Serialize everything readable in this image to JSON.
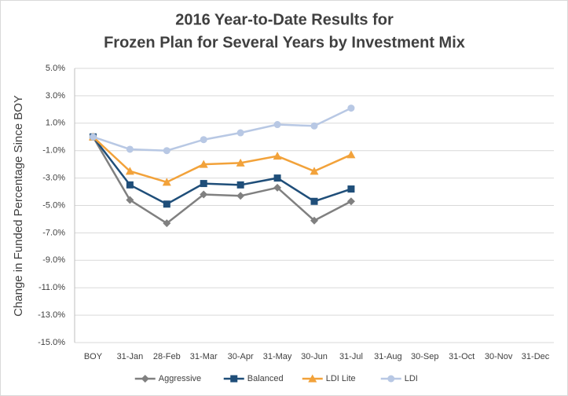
{
  "chart_data": {
    "type": "line",
    "title": "2016 Year-to-Date Results for",
    "subtitle": "Frozen Plan for Several Years by Investment Mix",
    "y_label": "Change in Funded Percentage Since BOY",
    "categories": [
      "BOY",
      "31-Jan",
      "28-Feb",
      "31-Mar",
      "30-Apr",
      "31-May",
      "30-Jun",
      "31-Jul",
      "31-Aug",
      "30-Sep",
      "31-Oct",
      "30-Nov",
      "31-Dec"
    ],
    "series": [
      {
        "name": "Aggressive",
        "color": "#808080",
        "marker": "diamond",
        "values": [
          0,
          -4.6,
          -6.3,
          -4.2,
          -4.3,
          -3.7,
          -6.1,
          -4.7,
          null,
          null,
          null,
          null,
          null
        ]
      },
      {
        "name": "Balanced",
        "color": "#1f4e79",
        "marker": "square",
        "values": [
          0,
          -3.5,
          -4.9,
          -3.4,
          -3.5,
          -3.0,
          -4.7,
          -3.8,
          null,
          null,
          null,
          null,
          null
        ]
      },
      {
        "name": "LDI Lite",
        "color": "#f2a23a",
        "marker": "triangle",
        "values": [
          0,
          -2.5,
          -3.3,
          -2.0,
          -1.9,
          -1.4,
          -2.5,
          -1.3,
          null,
          null,
          null,
          null,
          null
        ]
      },
      {
        "name": "LDI",
        "color": "#b8c8e4",
        "marker": "circle",
        "values": [
          0,
          -0.9,
          -1.0,
          -0.2,
          0.3,
          0.9,
          0.8,
          2.1,
          null,
          null,
          null,
          null,
          null
        ]
      }
    ],
    "ylim": [
      -15,
      5
    ],
    "yticks": [
      {
        "value": 5,
        "label": "5.0%"
      },
      {
        "value": 3,
        "label": "3.0%"
      },
      {
        "value": 1,
        "label": "1.0%"
      },
      {
        "value": -1,
        "label": "-1.0%"
      },
      {
        "value": -3,
        "label": "-3.0%"
      },
      {
        "value": -5,
        "label": "-5.0%"
      },
      {
        "value": -7,
        "label": "-7.0%"
      },
      {
        "value": -9,
        "label": "-9.0%"
      },
      {
        "value": -11,
        "label": "-11.0%"
      },
      {
        "value": -13,
        "label": "-13.0%"
      },
      {
        "value": -15,
        "label": "-15.0%"
      }
    ],
    "grid": true,
    "legend": "bottom"
  }
}
